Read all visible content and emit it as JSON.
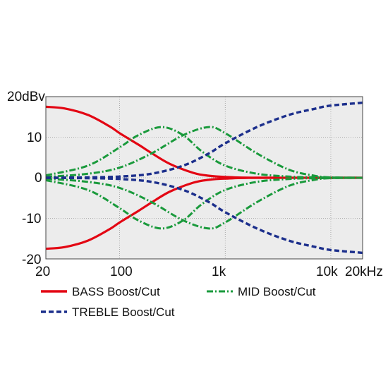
{
  "chart_data": {
    "type": "line",
    "xscale": "log",
    "xlim": [
      20,
      20000
    ],
    "ylim": [
      -20,
      20
    ],
    "grid": true,
    "plot_background": "#ececec",
    "y_ticks": [
      {
        "value": 20,
        "label": "20dBv"
      },
      {
        "value": 10,
        "label": "10"
      },
      {
        "value": 0,
        "label": "0"
      },
      {
        "value": -10,
        "label": "-10"
      },
      {
        "value": -20,
        "label": "-20"
      }
    ],
    "x_ticks": [
      {
        "value": 20,
        "label": "20"
      },
      {
        "value": 100,
        "label": "100"
      },
      {
        "value": 1000,
        "label": "1k"
      },
      {
        "value": 10000,
        "label": "10k"
      },
      {
        "value": 20000,
        "label": "20kHz"
      }
    ],
    "legend_position": "below-plot",
    "series": [
      {
        "name": "BASS Boost/Cut",
        "color": "#e30613",
        "style": "solid",
        "curves": [
          [
            [
              20,
              17.5
            ],
            [
              30,
              17.1
            ],
            [
              50,
              15.5
            ],
            [
              80,
              12.7
            ],
            [
              100,
              11.0
            ],
            [
              150,
              8.2
            ],
            [
              200,
              6.1
            ],
            [
              300,
              3.4
            ],
            [
              500,
              1.2
            ],
            [
              700,
              0.5
            ],
            [
              1000,
              0.2
            ],
            [
              2000,
              0.0
            ],
            [
              20000,
              0.0
            ]
          ],
          [
            [
              20,
              -17.5
            ],
            [
              30,
              -17.1
            ],
            [
              50,
              -15.5
            ],
            [
              80,
              -12.7
            ],
            [
              100,
              -11.0
            ],
            [
              150,
              -8.2
            ],
            [
              200,
              -6.1
            ],
            [
              300,
              -3.4
            ],
            [
              500,
              -1.2
            ],
            [
              700,
              -0.5
            ],
            [
              1000,
              -0.2
            ],
            [
              2000,
              0.0
            ],
            [
              20000,
              0.0
            ]
          ]
        ]
      },
      {
        "name": "MID Boost/Cut",
        "color": "#1a9a3c",
        "style": "dashdot",
        "curves": [
          [
            [
              20,
              0.6
            ],
            [
              50,
              3.0
            ],
            [
              100,
              7.5
            ],
            [
              150,
              10.5
            ],
            [
              250,
              12.5
            ],
            [
              400,
              10.5
            ],
            [
              600,
              6.5
            ],
            [
              1000,
              3.0
            ],
            [
              2000,
              1.0
            ],
            [
              4000,
              0.3
            ],
            [
              7000,
              0.1
            ],
            [
              20000,
              0.0
            ]
          ],
          [
            [
              20,
              -0.6
            ],
            [
              50,
              -3.0
            ],
            [
              100,
              -7.5
            ],
            [
              150,
              -10.5
            ],
            [
              250,
              -12.5
            ],
            [
              400,
              -10.5
            ],
            [
              600,
              -6.5
            ],
            [
              1000,
              -3.0
            ],
            [
              2000,
              -1.0
            ],
            [
              4000,
              -0.3
            ],
            [
              7000,
              -0.1
            ],
            [
              20000,
              0.0
            ]
          ],
          [
            [
              20,
              0.2
            ],
            [
              50,
              1.0
            ],
            [
              100,
              2.5
            ],
            [
              200,
              6.0
            ],
            [
              400,
              10.5
            ],
            [
              700,
              12.5
            ],
            [
              1000,
              11.0
            ],
            [
              2000,
              6.0
            ],
            [
              4000,
              2.0
            ],
            [
              7000,
              0.5
            ],
            [
              10000,
              0.1
            ],
            [
              20000,
              0.0
            ]
          ],
          [
            [
              20,
              -0.2
            ],
            [
              50,
              -1.0
            ],
            [
              100,
              -2.5
            ],
            [
              200,
              -6.0
            ],
            [
              400,
              -10.5
            ],
            [
              700,
              -12.5
            ],
            [
              1000,
              -11.0
            ],
            [
              2000,
              -6.0
            ],
            [
              4000,
              -2.0
            ],
            [
              7000,
              -0.5
            ],
            [
              10000,
              -0.1
            ],
            [
              20000,
              0.0
            ]
          ]
        ]
      },
      {
        "name": "TREBLE Boost/Cut",
        "color": "#1c2f8c",
        "style": "dashed",
        "curves": [
          [
            [
              20,
              0.0
            ],
            [
              50,
              0.1
            ],
            [
              100,
              0.3
            ],
            [
              200,
              1.0
            ],
            [
              400,
              3.0
            ],
            [
              700,
              6.0
            ],
            [
              1000,
              8.5
            ],
            [
              2000,
              12.5
            ],
            [
              4000,
              15.5
            ],
            [
              7000,
              17.0
            ],
            [
              10000,
              17.8
            ],
            [
              20000,
              18.5
            ]
          ],
          [
            [
              20,
              0.0
            ],
            [
              50,
              -0.1
            ],
            [
              100,
              -0.3
            ],
            [
              200,
              -1.0
            ],
            [
              400,
              -3.0
            ],
            [
              700,
              -6.0
            ],
            [
              1000,
              -8.5
            ],
            [
              2000,
              -12.5
            ],
            [
              4000,
              -15.5
            ],
            [
              7000,
              -17.0
            ],
            [
              10000,
              -17.8
            ],
            [
              20000,
              -18.5
            ]
          ]
        ]
      }
    ]
  }
}
